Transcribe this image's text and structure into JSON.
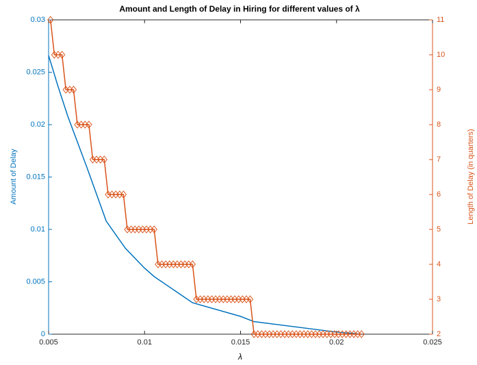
{
  "chart_data": {
    "type": "line",
    "title": "Amount and Length of Delay in Hiring for different values of λ",
    "xlabel": "λ",
    "ylabel": "Amount of Delay",
    "y2label": "Length of Delay (in quarters)",
    "xlim": [
      0.005,
      0.025
    ],
    "xticks": [
      0.005,
      0.01,
      0.015,
      0.02,
      0.025
    ],
    "ylim": [
      0,
      0.03
    ],
    "yticks": [
      0,
      0.005,
      0.01,
      0.015,
      0.02,
      0.025,
      0.03
    ],
    "y2lim": [
      2,
      11
    ],
    "y2ticks": [
      2,
      3,
      4,
      5,
      6,
      7,
      8,
      9,
      10,
      11
    ],
    "series": [
      {
        "color": "#0072BD",
        "marker": "none",
        "x": [
          0.005,
          0.0055,
          0.006,
          0.007,
          0.008,
          0.009,
          0.01,
          0.0105,
          0.0125,
          0.015,
          0.0157,
          0.02,
          0.0213
        ],
        "values": [
          0.0266,
          0.0236,
          0.0208,
          0.0159,
          0.0108,
          0.0082,
          0.0063,
          0.0055,
          0.003,
          0.0017,
          0.0012,
          0.0002,
          0
        ]
      },
      {
        "color": "#D95319",
        "marker": "diamond",
        "axis": "y2",
        "x": [
          0.0051,
          0.0053,
          0.0055,
          0.0057,
          0.0059,
          0.0061,
          0.0063,
          0.0065,
          0.0067,
          0.0069,
          0.0071,
          0.0073,
          0.0075,
          0.0077,
          0.0079,
          0.0081,
          0.0083,
          0.0085,
          0.0087,
          0.0089,
          0.0091,
          0.0093,
          0.0095,
          0.0097,
          0.0099,
          0.0101,
          0.0103,
          0.0105,
          0.0107,
          0.0109,
          0.0111,
          0.0113,
          0.0115,
          0.0117,
          0.0119,
          0.0121,
          0.0123,
          0.0125,
          0.0127,
          0.0129,
          0.0131,
          0.0133,
          0.0135,
          0.0137,
          0.0139,
          0.0141,
          0.0143,
          0.0145,
          0.0147,
          0.0149,
          0.0151,
          0.0153,
          0.0155,
          0.0157,
          0.0159,
          0.0161,
          0.0163,
          0.0165,
          0.0167,
          0.0169,
          0.0171,
          0.0173,
          0.0175,
          0.0177,
          0.0179,
          0.0181,
          0.0183,
          0.0185,
          0.0187,
          0.0189,
          0.0191,
          0.0193,
          0.0195,
          0.0197,
          0.0199,
          0.0201,
          0.0203,
          0.0205,
          0.0207,
          0.0209,
          0.0211,
          0.0213
        ],
        "values": [
          11,
          10,
          10,
          10,
          9,
          9,
          9,
          8,
          8,
          8,
          8,
          7,
          7,
          7,
          7,
          6,
          6,
          6,
          6,
          6,
          5,
          5,
          5,
          5,
          5,
          5,
          5,
          5,
          4,
          4,
          4,
          4,
          4,
          4,
          4,
          4,
          4,
          4,
          3,
          3,
          3,
          3,
          3,
          3,
          3,
          3,
          3,
          3,
          3,
          3,
          3,
          3,
          3,
          2,
          2,
          2,
          2,
          2,
          2,
          2,
          2,
          2,
          2,
          2,
          2,
          2,
          2,
          2,
          2,
          2,
          2,
          2,
          2,
          2,
          2,
          2,
          2,
          2,
          2,
          2,
          2,
          2
        ]
      }
    ]
  }
}
